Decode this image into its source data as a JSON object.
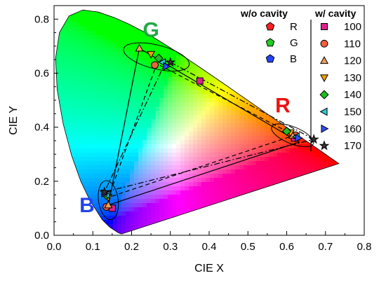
{
  "chart_data": {
    "type": "scatter",
    "xlabel": "CIE X",
    "ylabel": "CIE Y",
    "xlim": [
      0.0,
      0.8
    ],
    "ylim": [
      0.0,
      0.85
    ],
    "xticks": [
      "0.0",
      "0.1",
      "0.2",
      "0.3",
      "0.4",
      "0.5",
      "0.6",
      "0.7",
      "0.8"
    ],
    "yticks": [
      "0.0",
      "0.2",
      "0.4",
      "0.6",
      "0.8"
    ],
    "grid": false,
    "background": "CIE 1931 chromaticity diagram",
    "spectral_locus": [
      [
        0.1741,
        0.005
      ],
      [
        0.1666,
        0.0089
      ],
      [
        0.144,
        0.0297
      ],
      [
        0.1241,
        0.0578
      ],
      [
        0.0913,
        0.1327
      ],
      [
        0.0687,
        0.2007
      ],
      [
        0.0454,
        0.295
      ],
      [
        0.0235,
        0.4127
      ],
      [
        0.0082,
        0.5384
      ],
      [
        0.0039,
        0.6548
      ],
      [
        0.0139,
        0.7502
      ],
      [
        0.0389,
        0.812
      ],
      [
        0.0743,
        0.8338
      ],
      [
        0.1142,
        0.8262
      ],
      [
        0.1547,
        0.8059
      ],
      [
        0.1929,
        0.7816
      ],
      [
        0.2296,
        0.7543
      ],
      [
        0.2658,
        0.7243
      ],
      [
        0.3016,
        0.6923
      ],
      [
        0.3373,
        0.6589
      ],
      [
        0.3731,
        0.6245
      ],
      [
        0.4087,
        0.5896
      ],
      [
        0.4441,
        0.5547
      ],
      [
        0.4788,
        0.5202
      ],
      [
        0.5125,
        0.4866
      ],
      [
        0.5448,
        0.4544
      ],
      [
        0.5752,
        0.4242
      ],
      [
        0.6029,
        0.3965
      ],
      [
        0.627,
        0.3725
      ],
      [
        0.6482,
        0.3514
      ],
      [
        0.6658,
        0.334
      ],
      [
        0.6801,
        0.3197
      ],
      [
        0.6915,
        0.3083
      ],
      [
        0.7006,
        0.2993
      ],
      [
        0.7079,
        0.292
      ],
      [
        0.714,
        0.2859
      ],
      [
        0.719,
        0.2809
      ],
      [
        0.723,
        0.277
      ],
      [
        0.726,
        0.274
      ],
      [
        0.7283,
        0.2717
      ],
      [
        0.73,
        0.27
      ],
      [
        0.7347,
        0.2653
      ]
    ],
    "groups": [
      {
        "name": "R",
        "legend_color": "#ff2020"
      },
      {
        "name": "G",
        "legend_color": "#22cc22"
      },
      {
        "name": "B",
        "legend_color": "#2244ff"
      }
    ],
    "series": [
      {
        "name": "100",
        "marker": "square",
        "color": "#e0208c",
        "points": [
          [
            0.62,
            0.36
          ],
          [
            0.376,
            0.571
          ],
          [
            0.15,
            0.1
          ]
        ]
      },
      {
        "name": "110",
        "marker": "circle",
        "color": "#f06040",
        "points": [
          [
            0.623,
            0.37
          ],
          [
            0.26,
            0.63
          ],
          [
            0.135,
            0.105
          ]
        ]
      },
      {
        "name": "120",
        "marker": "triangle-up",
        "color": "#f0a060",
        "points": [
          [
            0.615,
            0.37
          ],
          [
            0.22,
            0.692
          ],
          [
            0.14,
            0.112
          ]
        ]
      },
      {
        "name": "130",
        "marker": "triangle-down",
        "color": "#f0a000",
        "points": [
          [
            0.61,
            0.38
          ],
          [
            0.25,
            0.67
          ],
          [
            0.14,
            0.14
          ]
        ]
      },
      {
        "name": "140",
        "marker": "diamond",
        "color": "#22bb22",
        "points": [
          [
            0.6,
            0.385
          ],
          [
            0.27,
            0.655
          ],
          [
            0.135,
            0.148
          ]
        ]
      },
      {
        "name": "150",
        "marker": "triangle-left",
        "color": "#30c8d0",
        "points": [
          [
            0.625,
            0.365
          ],
          [
            0.28,
            0.64
          ],
          [
            0.135,
            0.15
          ]
        ]
      },
      {
        "name": "160",
        "marker": "triangle-right",
        "color": "#3050ff",
        "points": [
          [
            0.63,
            0.36
          ],
          [
            0.29,
            0.625
          ],
          [
            0.13,
            0.155
          ]
        ]
      },
      {
        "name": "170",
        "marker": "star",
        "color": "#333333",
        "points": [
          [
            0.67,
            0.355
          ],
          [
            0.3,
            0.64
          ],
          [
            0.13,
            0.16
          ]
        ]
      }
    ],
    "gamut_lines": [
      {
        "style": "solid",
        "points": [
          [
            0.632,
            0.345
          ],
          [
            0.22,
            0.692
          ],
          [
            0.14,
            0.112
          ]
        ]
      },
      {
        "style": "dash",
        "points": [
          [
            0.62,
            0.37
          ],
          [
            0.265,
            0.635
          ],
          [
            0.14,
            0.14
          ]
        ]
      },
      {
        "style": "dashdot",
        "points": [
          [
            0.67,
            0.355
          ],
          [
            0.29,
            0.648
          ],
          [
            0.13,
            0.16
          ]
        ]
      }
    ],
    "legend_groups_title": "w/o cavity",
    "legend_series_title": "w/ cavity",
    "annotations": [
      {
        "text": "G",
        "color": "#22aa44",
        "x": 0.25,
        "y": 0.735
      },
      {
        "text": "R",
        "color": "#ee1111",
        "x": 0.59,
        "y": 0.455
      },
      {
        "text": "B",
        "color": "#2244ee",
        "x": 0.085,
        "y": 0.085
      }
    ]
  }
}
